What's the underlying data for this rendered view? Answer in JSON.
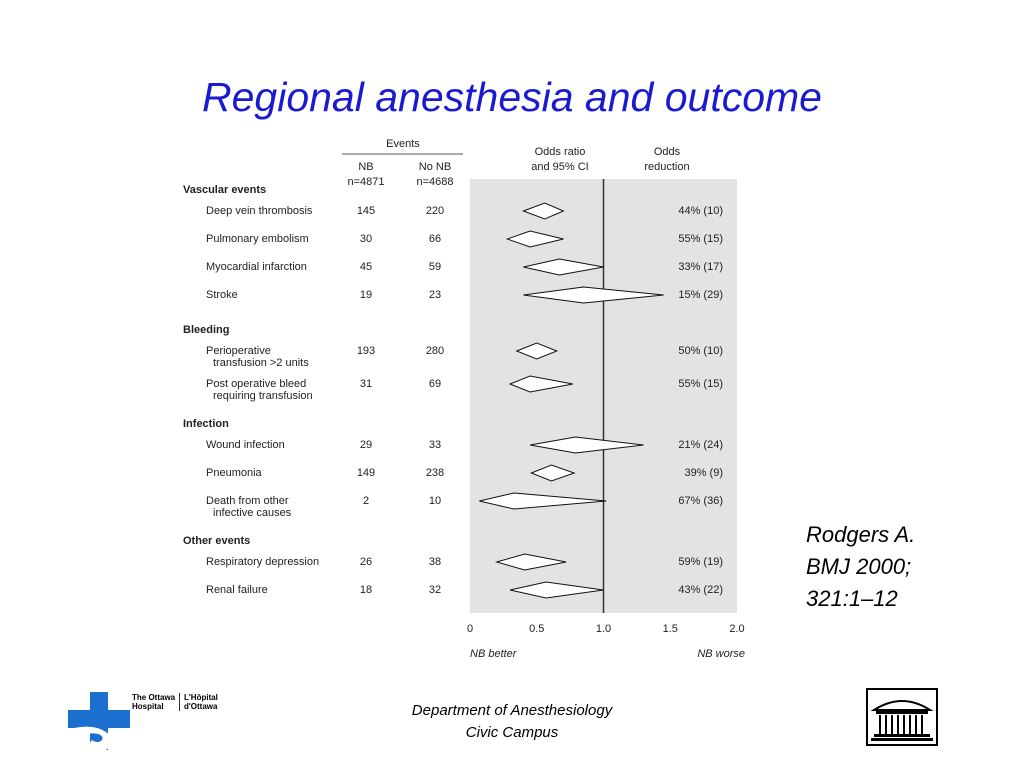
{
  "slide": {
    "title": "Regional anesthesia and outcome",
    "reference_lines": [
      "Rodgers A.",
      "BMJ 2000;",
      "321:1–12"
    ],
    "footer_lines": [
      "Department of Anesthesiology",
      "Civic Campus"
    ],
    "logo_left": {
      "name_en": "The Ottawa Hospital",
      "name_fr": "L'Hôpital d'Ottawa",
      "text_lines_en": [
        "The Ottawa",
        "Hospital"
      ],
      "text_lines_fr": [
        "L'Hôpital",
        "d'Ottawa"
      ],
      "color": "#1a6fcf"
    },
    "logo_right": {
      "icon": "building-icon"
    }
  },
  "chart_data": {
    "type": "forest",
    "header_events": "Events",
    "col_nb_header": [
      "NB",
      "n=4871"
    ],
    "col_nonb_header": [
      "No NB",
      "n=4688"
    ],
    "col_or_header": [
      "Odds ratio",
      "and 95% CI"
    ],
    "col_red_header": [
      "Odds",
      "reduction"
    ],
    "x_ticks": [
      "0",
      "0.5",
      "1.0",
      "1.5",
      "2.0"
    ],
    "xlim": [
      0,
      2
    ],
    "reference_line": 1,
    "x_left_label": "NB better",
    "x_right_label": "NB worse",
    "colors": {
      "panel": "#e3e3e3",
      "reference": "#333333"
    },
    "groups": [
      {
        "name": "Vascular events",
        "rows": [
          {
            "label": [
              "Deep vein thrombosis"
            ],
            "nb": "145",
            "nonb": "220",
            "or": 0.56,
            "lo": 0.4,
            "hi": 0.7,
            "reduction": "44% (10)"
          },
          {
            "label": [
              "Pulmonary embolism"
            ],
            "nb": "30",
            "nonb": "66",
            "or": 0.45,
            "lo": 0.28,
            "hi": 0.7,
            "reduction": "55% (15)"
          },
          {
            "label": [
              "Myocardial infarction"
            ],
            "nb": "45",
            "nonb": "59",
            "or": 0.67,
            "lo": 0.4,
            "hi": 1.0,
            "reduction": "33% (17)"
          },
          {
            "label": [
              "Stroke"
            ],
            "nb": "19",
            "nonb": "23",
            "or": 0.85,
            "lo": 0.4,
            "hi": 1.45,
            "reduction": "15% (29)"
          }
        ]
      },
      {
        "name": "Bleeding",
        "rows": [
          {
            "label": [
              "Perioperative",
              "transfusion >2 units"
            ],
            "nb": "193",
            "nonb": "280",
            "or": 0.5,
            "lo": 0.35,
            "hi": 0.65,
            "reduction": "50% (10)"
          },
          {
            "label": [
              "Post operative bleed",
              "requiring transfusion"
            ],
            "nb": "31",
            "nonb": "69",
            "or": 0.45,
            "lo": 0.3,
            "hi": 0.77,
            "reduction": "55% (15)"
          }
        ]
      },
      {
        "name": "Infection",
        "rows": [
          {
            "label": [
              "Wound infection"
            ],
            "nb": "29",
            "nonb": "33",
            "or": 0.79,
            "lo": 0.45,
            "hi": 1.3,
            "reduction": "21% (24)"
          },
          {
            "label": [
              "Pneumonia"
            ],
            "nb": "149",
            "nonb": "238",
            "or": 0.61,
            "lo": 0.46,
            "hi": 0.78,
            "reduction": "39% (9)"
          },
          {
            "label": [
              "Death from other",
              "infective causes"
            ],
            "nb": "2",
            "nonb": "10",
            "or": 0.33,
            "lo": 0.07,
            "hi": 1.02,
            "reduction": "67% (36)"
          }
        ]
      },
      {
        "name": "Other events",
        "rows": [
          {
            "label": [
              "Respiratory depression"
            ],
            "nb": "26",
            "nonb": "38",
            "or": 0.41,
            "lo": 0.2,
            "hi": 0.72,
            "reduction": "59% (19)"
          },
          {
            "label": [
              "Renal failure"
            ],
            "nb": "18",
            "nonb": "32",
            "or": 0.57,
            "lo": 0.3,
            "hi": 1.0,
            "reduction": "43% (22)"
          }
        ]
      }
    ]
  }
}
